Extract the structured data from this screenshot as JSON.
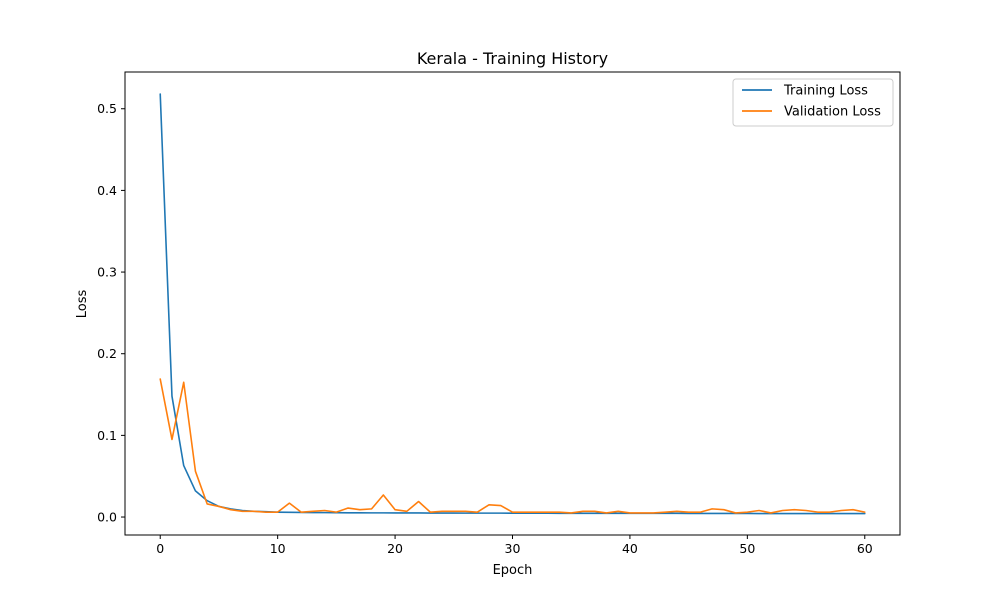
{
  "chart_data": {
    "type": "line",
    "title": "Kerala - Training History",
    "xlabel": "Epoch",
    "ylabel": "Loss",
    "xlim": [
      -3,
      63
    ],
    "ylim": [
      -0.022,
      0.545
    ],
    "xticks": [
      0,
      10,
      20,
      30,
      40,
      50,
      60
    ],
    "yticks": [
      0.0,
      0.1,
      0.2,
      0.3,
      0.4,
      0.5
    ],
    "ytick_labels": [
      "0.0",
      "0.1",
      "0.2",
      "0.3",
      "0.4",
      "0.5"
    ],
    "grid": false,
    "legend_position": "top-right",
    "x": [
      0,
      1,
      2,
      3,
      4,
      5,
      6,
      7,
      8,
      9,
      10,
      11,
      12,
      13,
      14,
      15,
      16,
      17,
      18,
      19,
      20,
      21,
      22,
      23,
      24,
      25,
      26,
      27,
      28,
      29,
      30,
      31,
      32,
      33,
      34,
      35,
      36,
      37,
      38,
      39,
      40,
      41,
      42,
      43,
      44,
      45,
      46,
      47,
      48,
      49,
      50,
      51,
      52,
      53,
      54,
      55,
      56,
      57,
      58,
      59,
      60
    ],
    "series": [
      {
        "name": "Training Loss",
        "color": "#1f77b4",
        "values": [
          0.518,
          0.148,
          0.063,
          0.032,
          0.02,
          0.013,
          0.01,
          0.008,
          0.007,
          0.0065,
          0.006,
          0.0058,
          0.0056,
          0.0055,
          0.0054,
          0.0053,
          0.0052,
          0.0052,
          0.0051,
          0.0051,
          0.005,
          0.005,
          0.005,
          0.0049,
          0.0049,
          0.0049,
          0.0048,
          0.0048,
          0.0048,
          0.0048,
          0.0047,
          0.0047,
          0.0047,
          0.0047,
          0.0046,
          0.0046,
          0.0046,
          0.0046,
          0.0046,
          0.0045,
          0.0045,
          0.0045,
          0.0045,
          0.0045,
          0.0045,
          0.0044,
          0.0044,
          0.0044,
          0.0044,
          0.0044,
          0.0044,
          0.0043,
          0.0043,
          0.0043,
          0.0043,
          0.0043,
          0.0043,
          0.0043,
          0.0042,
          0.0042,
          0.0042
        ]
      },
      {
        "name": "Validation Loss",
        "color": "#ff7f0e",
        "values": [
          0.169,
          0.095,
          0.165,
          0.056,
          0.016,
          0.013,
          0.009,
          0.007,
          0.007,
          0.006,
          0.006,
          0.017,
          0.006,
          0.007,
          0.008,
          0.006,
          0.011,
          0.009,
          0.01,
          0.027,
          0.009,
          0.007,
          0.019,
          0.006,
          0.007,
          0.007,
          0.007,
          0.006,
          0.015,
          0.014,
          0.006,
          0.006,
          0.006,
          0.006,
          0.006,
          0.005,
          0.007,
          0.007,
          0.005,
          0.007,
          0.005,
          0.005,
          0.005,
          0.006,
          0.007,
          0.006,
          0.006,
          0.01,
          0.009,
          0.005,
          0.006,
          0.008,
          0.005,
          0.008,
          0.009,
          0.008,
          0.006,
          0.006,
          0.008,
          0.009,
          0.006
        ]
      }
    ]
  }
}
